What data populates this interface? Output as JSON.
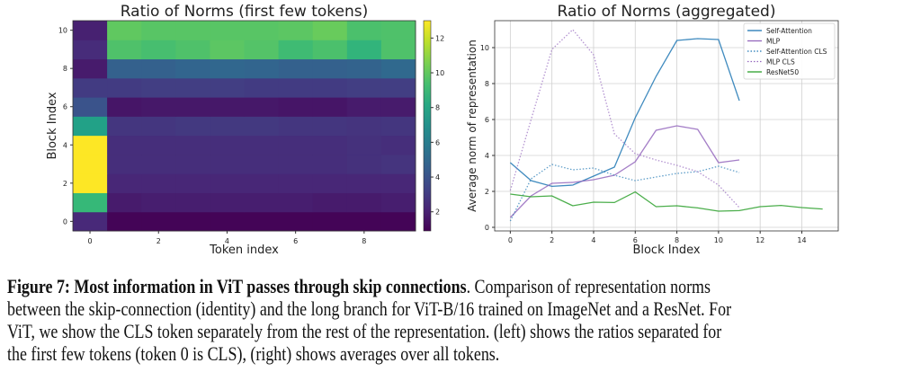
{
  "chart_data": [
    {
      "type": "heatmap",
      "title": "Ratio of Norms (first few tokens)",
      "xlabel": "Token index",
      "ylabel": "Block Index",
      "x": [
        0,
        1,
        2,
        3,
        4,
        5,
        6,
        7,
        8,
        9
      ],
      "y": [
        0,
        1,
        2,
        3,
        4,
        5,
        6,
        7,
        8,
        9,
        10
      ],
      "xticks": [
        "0",
        "2",
        "4",
        "6",
        "8"
      ],
      "yticks": [
        "0",
        "2",
        "4",
        "6",
        "8",
        "10"
      ],
      "colorbar": {
        "range": [
          0.9,
          13
        ],
        "ticks": [
          "2",
          "4",
          "6",
          "8",
          "10",
          "12"
        ],
        "colormap": "viridis"
      },
      "values": [
        [
          2.3,
          1.0,
          1.0,
          1.0,
          1.0,
          1.0,
          1.0,
          1.0,
          1.0,
          1.0
        ],
        [
          9.0,
          1.8,
          1.9,
          1.9,
          1.9,
          1.9,
          1.9,
          1.8,
          1.8,
          1.9
        ],
        [
          13.0,
          2.2,
          2.2,
          2.2,
          2.2,
          2.2,
          2.2,
          2.2,
          2.2,
          2.2
        ],
        [
          13.0,
          2.5,
          2.5,
          2.5,
          2.5,
          2.5,
          2.5,
          2.5,
          2.6,
          2.7
        ],
        [
          13.0,
          2.5,
          2.5,
          2.5,
          2.5,
          2.5,
          2.5,
          2.5,
          2.6,
          2.5
        ],
        [
          7.8,
          2.8,
          2.8,
          2.9,
          2.9,
          2.9,
          2.8,
          2.8,
          2.7,
          2.8
        ],
        [
          4.0,
          1.6,
          1.7,
          1.7,
          1.7,
          1.7,
          1.6,
          1.6,
          1.8,
          1.8
        ],
        [
          3.0,
          3.0,
          3.1,
          3.1,
          3.1,
          3.0,
          3.0,
          3.0,
          3.1,
          3.1
        ],
        [
          1.8,
          4.6,
          4.6,
          4.8,
          4.9,
          4.8,
          4.6,
          4.6,
          4.7,
          5.0
        ],
        [
          2.4,
          9.6,
          9.4,
          9.6,
          9.9,
          9.7,
          9.2,
          9.5,
          8.8,
          9.6
        ],
        [
          2.0,
          10.0,
          9.8,
          9.8,
          9.8,
          9.8,
          9.9,
          10.2,
          9.5,
          9.6
        ]
      ]
    },
    {
      "type": "line",
      "title": "Ratio of Norms (aggregated)",
      "xlabel": "Block Index",
      "ylabel": "Average norm of representation",
      "xlim": [
        -0.75,
        15.75
      ],
      "ylim": [
        -0.2,
        11.5
      ],
      "xticks": [
        "0",
        "2",
        "4",
        "6",
        "8",
        "10",
        "12",
        "14"
      ],
      "yticks": [
        "0",
        "2",
        "4",
        "6",
        "8",
        "10"
      ],
      "grid": true,
      "legend": "top-right",
      "series": [
        {
          "name": "Self-Attention",
          "color": "#1f77b4",
          "style": "solid",
          "x": [
            0,
            1,
            2,
            3,
            4,
            5,
            6,
            7,
            8,
            9,
            10,
            11
          ],
          "values": [
            3.6,
            2.6,
            2.28,
            2.35,
            2.85,
            3.35,
            6.1,
            8.4,
            10.4,
            10.5,
            10.45,
            7.05
          ]
        },
        {
          "name": "MLP",
          "color": "#9467bd",
          "style": "solid",
          "x": [
            0,
            1,
            2,
            3,
            4,
            5,
            6,
            7,
            8,
            9,
            10,
            11
          ],
          "values": [
            0.55,
            1.75,
            2.45,
            2.5,
            2.65,
            2.9,
            3.65,
            5.4,
            5.65,
            5.45,
            3.6,
            3.75
          ]
        },
        {
          "name": "Self-Attention CLS",
          "color": "#1f77b4",
          "style": "dotted",
          "x": [
            0,
            1,
            2,
            3,
            4,
            5,
            6,
            7,
            8,
            9,
            10,
            11
          ],
          "values": [
            0.35,
            2.7,
            3.5,
            3.2,
            3.3,
            2.9,
            2.6,
            2.8,
            3.0,
            3.1,
            3.4,
            3.05
          ]
        },
        {
          "name": "MLP CLS",
          "color": "#9467bd",
          "style": "dotted",
          "x": [
            0,
            1,
            2,
            3,
            4,
            5,
            6,
            7,
            8,
            9,
            10,
            11
          ],
          "values": [
            2.05,
            6.0,
            9.9,
            11.0,
            9.6,
            5.2,
            4.1,
            3.75,
            3.45,
            3.1,
            2.35,
            1.1
          ]
        },
        {
          "name": "ResNet50",
          "color": "#2ca02c",
          "style": "solid",
          "x": [
            0,
            1,
            2,
            3,
            4,
            5,
            6,
            7,
            8,
            9,
            10,
            11,
            12,
            13,
            14,
            15
          ],
          "values": [
            1.85,
            1.7,
            1.75,
            1.2,
            1.4,
            1.38,
            1.97,
            1.15,
            1.2,
            1.08,
            0.9,
            0.93,
            1.15,
            1.22,
            1.1,
            1.02
          ]
        }
      ]
    }
  ],
  "caption": {
    "figure_label": "Figure 7: Most information in ViT passes through skip connections",
    "line1_rest": ". Comparison of representation norms",
    "line2": "between the skip-connection (identity) and the long branch for ViT-B/16 trained on ImageNet and a ResNet. For",
    "line3": "ViT, we show the CLS token separately from the rest of the representation. (left) shows the ratios separated for",
    "line4": "the first few tokens (token 0 is CLS), (right) shows averages over all tokens."
  }
}
